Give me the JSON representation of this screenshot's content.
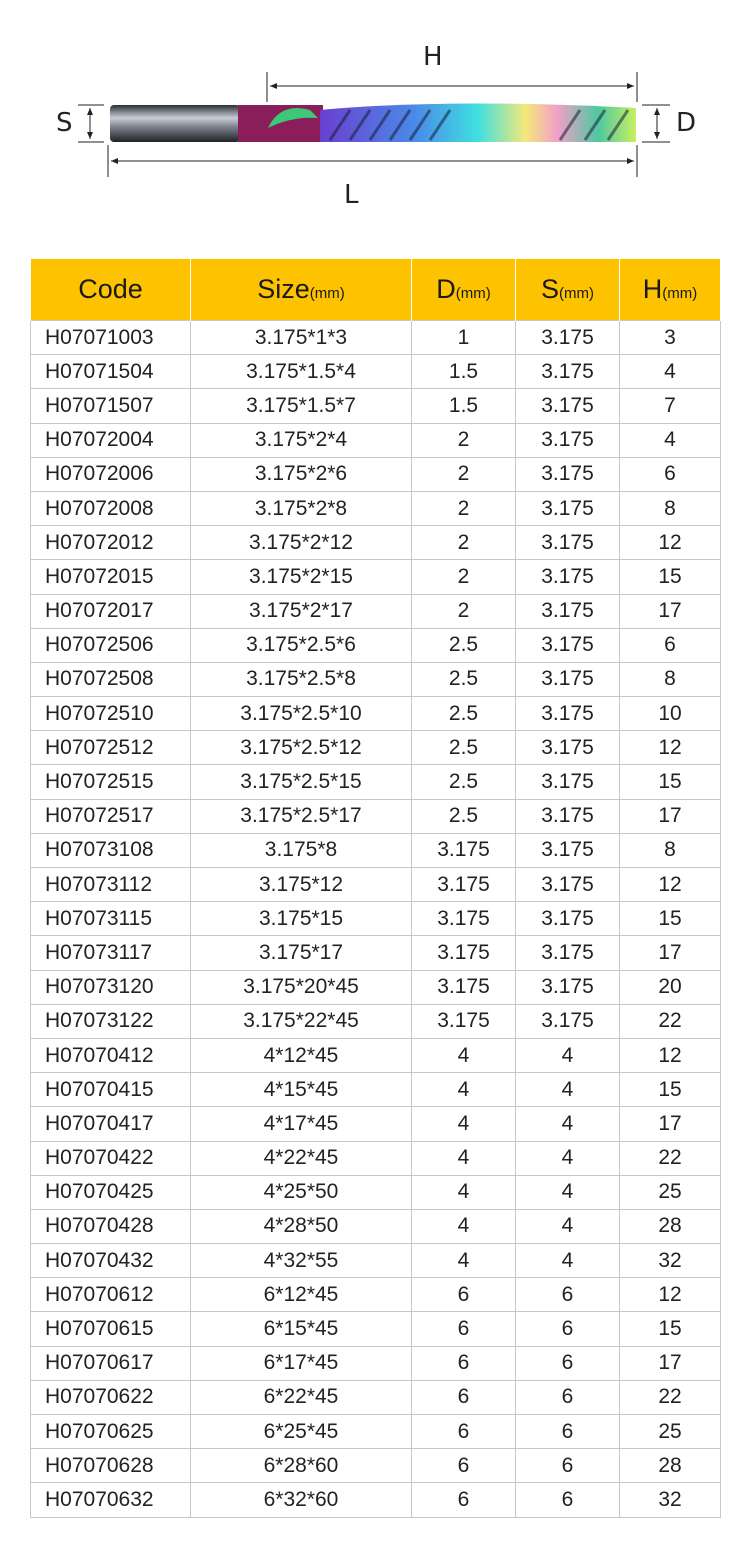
{
  "diagram": {
    "label_h": "H",
    "label_s": "S",
    "label_d": "D",
    "label_l": "L"
  },
  "colors": {
    "header_bg": "#fdc300",
    "grid": "#c8c8c8"
  },
  "table": {
    "headers": [
      {
        "main": "Code",
        "unit": ""
      },
      {
        "main": "Size",
        "unit": "(mm)"
      },
      {
        "main": "D",
        "unit": "(mm)"
      },
      {
        "main": "S",
        "unit": "(mm)"
      },
      {
        "main": "H",
        "unit": "(mm)"
      }
    ],
    "rows": [
      [
        "H07071003",
        "3.175*1*3",
        "1",
        "3.175",
        "3"
      ],
      [
        "H07071504",
        "3.175*1.5*4",
        "1.5",
        "3.175",
        "4"
      ],
      [
        "H07071507",
        "3.175*1.5*7",
        "1.5",
        "3.175",
        "7"
      ],
      [
        "H07072004",
        "3.175*2*4",
        "2",
        "3.175",
        "4"
      ],
      [
        "H07072006",
        "3.175*2*6",
        "2",
        "3.175",
        "6"
      ],
      [
        "H07072008",
        "3.175*2*8",
        "2",
        "3.175",
        "8"
      ],
      [
        "H07072012",
        "3.175*2*12",
        "2",
        "3.175",
        "12"
      ],
      [
        "H07072015",
        "3.175*2*15",
        "2",
        "3.175",
        "15"
      ],
      [
        "H07072017",
        "3.175*2*17",
        "2",
        "3.175",
        "17"
      ],
      [
        "H07072506",
        "3.175*2.5*6",
        "2.5",
        "3.175",
        "6"
      ],
      [
        "H07072508",
        "3.175*2.5*8",
        "2.5",
        "3.175",
        "8"
      ],
      [
        "H07072510",
        "3.175*2.5*10",
        "2.5",
        "3.175",
        "10"
      ],
      [
        "H07072512",
        "3.175*2.5*12",
        "2.5",
        "3.175",
        "12"
      ],
      [
        "H07072515",
        "3.175*2.5*15",
        "2.5",
        "3.175",
        "15"
      ],
      [
        "H07072517",
        "3.175*2.5*17",
        "2.5",
        "3.175",
        "17"
      ],
      [
        "H07073108",
        "3.175*8",
        "3.175",
        "3.175",
        "8"
      ],
      [
        "H07073112",
        "3.175*12",
        "3.175",
        "3.175",
        "12"
      ],
      [
        "H07073115",
        "3.175*15",
        "3.175",
        "3.175",
        "15"
      ],
      [
        "H07073117",
        "3.175*17",
        "3.175",
        "3.175",
        "17"
      ],
      [
        "H07073120",
        "3.175*20*45",
        "3.175",
        "3.175",
        "20"
      ],
      [
        "H07073122",
        "3.175*22*45",
        "3.175",
        "3.175",
        "22"
      ],
      [
        "H07070412",
        "4*12*45",
        "4",
        "4",
        "12"
      ],
      [
        "H07070415",
        "4*15*45",
        "4",
        "4",
        "15"
      ],
      [
        "H07070417",
        "4*17*45",
        "4",
        "4",
        "17"
      ],
      [
        "H07070422",
        "4*22*45",
        "4",
        "4",
        "22"
      ],
      [
        "H07070425",
        "4*25*50",
        "4",
        "4",
        "25"
      ],
      [
        "H07070428",
        "4*28*50",
        "4",
        "4",
        "28"
      ],
      [
        "H07070432",
        "4*32*55",
        "4",
        "4",
        "32"
      ],
      [
        "H07070612",
        "6*12*45",
        "6",
        "6",
        "12"
      ],
      [
        "H07070615",
        "6*15*45",
        "6",
        "6",
        "15"
      ],
      [
        "H07070617",
        "6*17*45",
        "6",
        "6",
        "17"
      ],
      [
        "H07070622",
        "6*22*45",
        "6",
        "6",
        "22"
      ],
      [
        "H07070625",
        "6*25*45",
        "6",
        "6",
        "25"
      ],
      [
        "H07070628",
        "6*28*60",
        "6",
        "6",
        "28"
      ],
      [
        "H07070632",
        "6*32*60",
        "6",
        "6",
        "32"
      ]
    ]
  }
}
